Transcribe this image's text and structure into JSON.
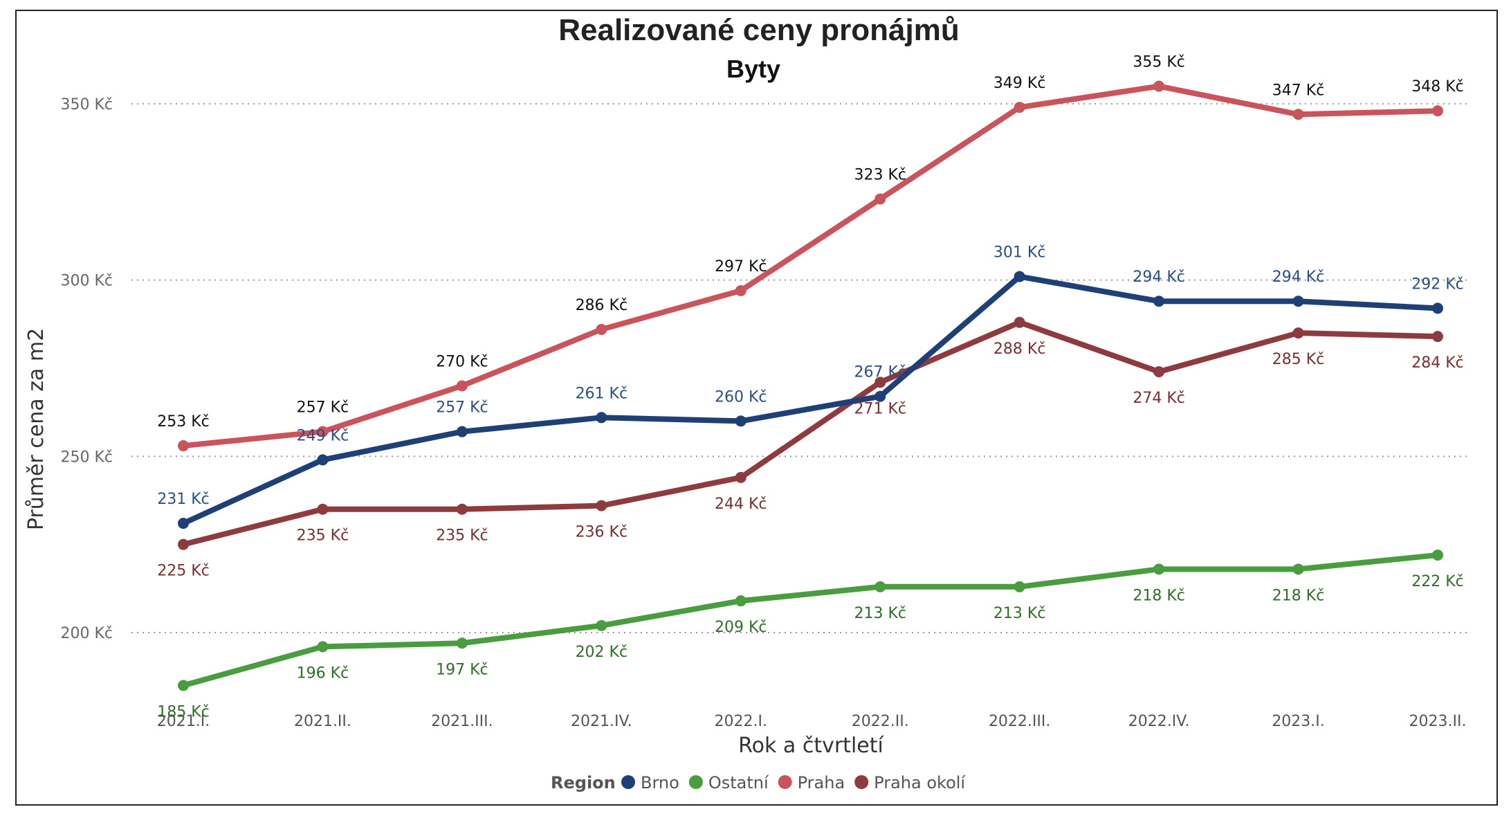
{
  "chart_data": {
    "type": "line",
    "title": "Realizované ceny pronájmů",
    "subtitle": "Byty",
    "xlabel": "Rok a čtvrtletí",
    "ylabel": "Průměr cena za m2",
    "ylim": [
      170,
      375
    ],
    "yticks": [
      200,
      250,
      300,
      350
    ],
    "ytick_labels": [
      "200 Kč",
      "250 Kč",
      "300 Kč",
      "350 Kč"
    ],
    "grid": true,
    "categories": [
      "2021.I.",
      "2021.II.",
      "2021.III.",
      "2021.IV.",
      "2022.I.",
      "2022.II.",
      "2022.III.",
      "2022.IV.",
      "2023.I.",
      "2023.II."
    ],
    "legend": {
      "title": "Region",
      "placement": "bottom-center"
    },
    "series": [
      {
        "name": "Praha okolí",
        "color": "#8e3b3f",
        "label_color": "#7a2e32",
        "values": [
          225,
          235,
          235,
          236,
          244,
          271,
          288,
          274,
          285,
          284
        ],
        "labels": [
          "225 Kč",
          "235 Kč",
          "235 Kč",
          "236 Kč",
          "244 Kč",
          "271 Kč",
          "288 Kč",
          "274 Kč",
          "285 Kč",
          "284 Kč"
        ],
        "label_pos": [
          "below",
          "below",
          "below",
          "below",
          "below",
          "below",
          "below",
          "below",
          "below",
          "below"
        ]
      },
      {
        "name": "Ostatní",
        "color": "#4a9d3f",
        "label_color": "#2e6f28",
        "values": [
          185,
          196,
          197,
          202,
          209,
          213,
          213,
          218,
          218,
          222
        ],
        "labels": [
          "185 Kč",
          "196 Kč",
          "197 Kč",
          "202 Kč",
          "209 Kč",
          "213 Kč",
          "213 Kč",
          "218 Kč",
          "218 Kč",
          "222 Kč"
        ],
        "label_pos": [
          "below",
          "below",
          "below",
          "below",
          "below",
          "below",
          "below",
          "below",
          "below",
          "below"
        ]
      },
      {
        "name": "Brno",
        "color": "#1f3f77",
        "label_color": "#2a4f86",
        "values": [
          231,
          249,
          257,
          261,
          260,
          267,
          301,
          294,
          294,
          292
        ],
        "labels": [
          "231 Kč",
          "249 Kč",
          "257 Kč",
          "261 Kč",
          "260 Kč",
          "267 Kč",
          "301 Kč",
          "294 Kč",
          "294 Kč",
          "292 Kč"
        ],
        "label_pos": [
          "above",
          "above",
          "above",
          "above",
          "above",
          "above",
          "above",
          "above",
          "above",
          "above"
        ]
      },
      {
        "name": "Praha",
        "color": "#c9545b",
        "label_color": "#111111",
        "values": [
          253,
          257,
          270,
          286,
          297,
          323,
          349,
          355,
          347,
          348
        ],
        "labels": [
          "253 Kč",
          "257 Kč",
          "270 Kč",
          "286 Kč",
          "297 Kč",
          "323 Kč",
          "349 Kč",
          "355 Kč",
          "347 Kč",
          "348 Kč"
        ],
        "label_pos": [
          "above",
          "above",
          "above",
          "above",
          "above",
          "above",
          "above",
          "above",
          "above",
          "above"
        ]
      }
    ],
    "legend_order": [
      "Brno",
      "Ostatní",
      "Praha",
      "Praha okolí"
    ]
  }
}
